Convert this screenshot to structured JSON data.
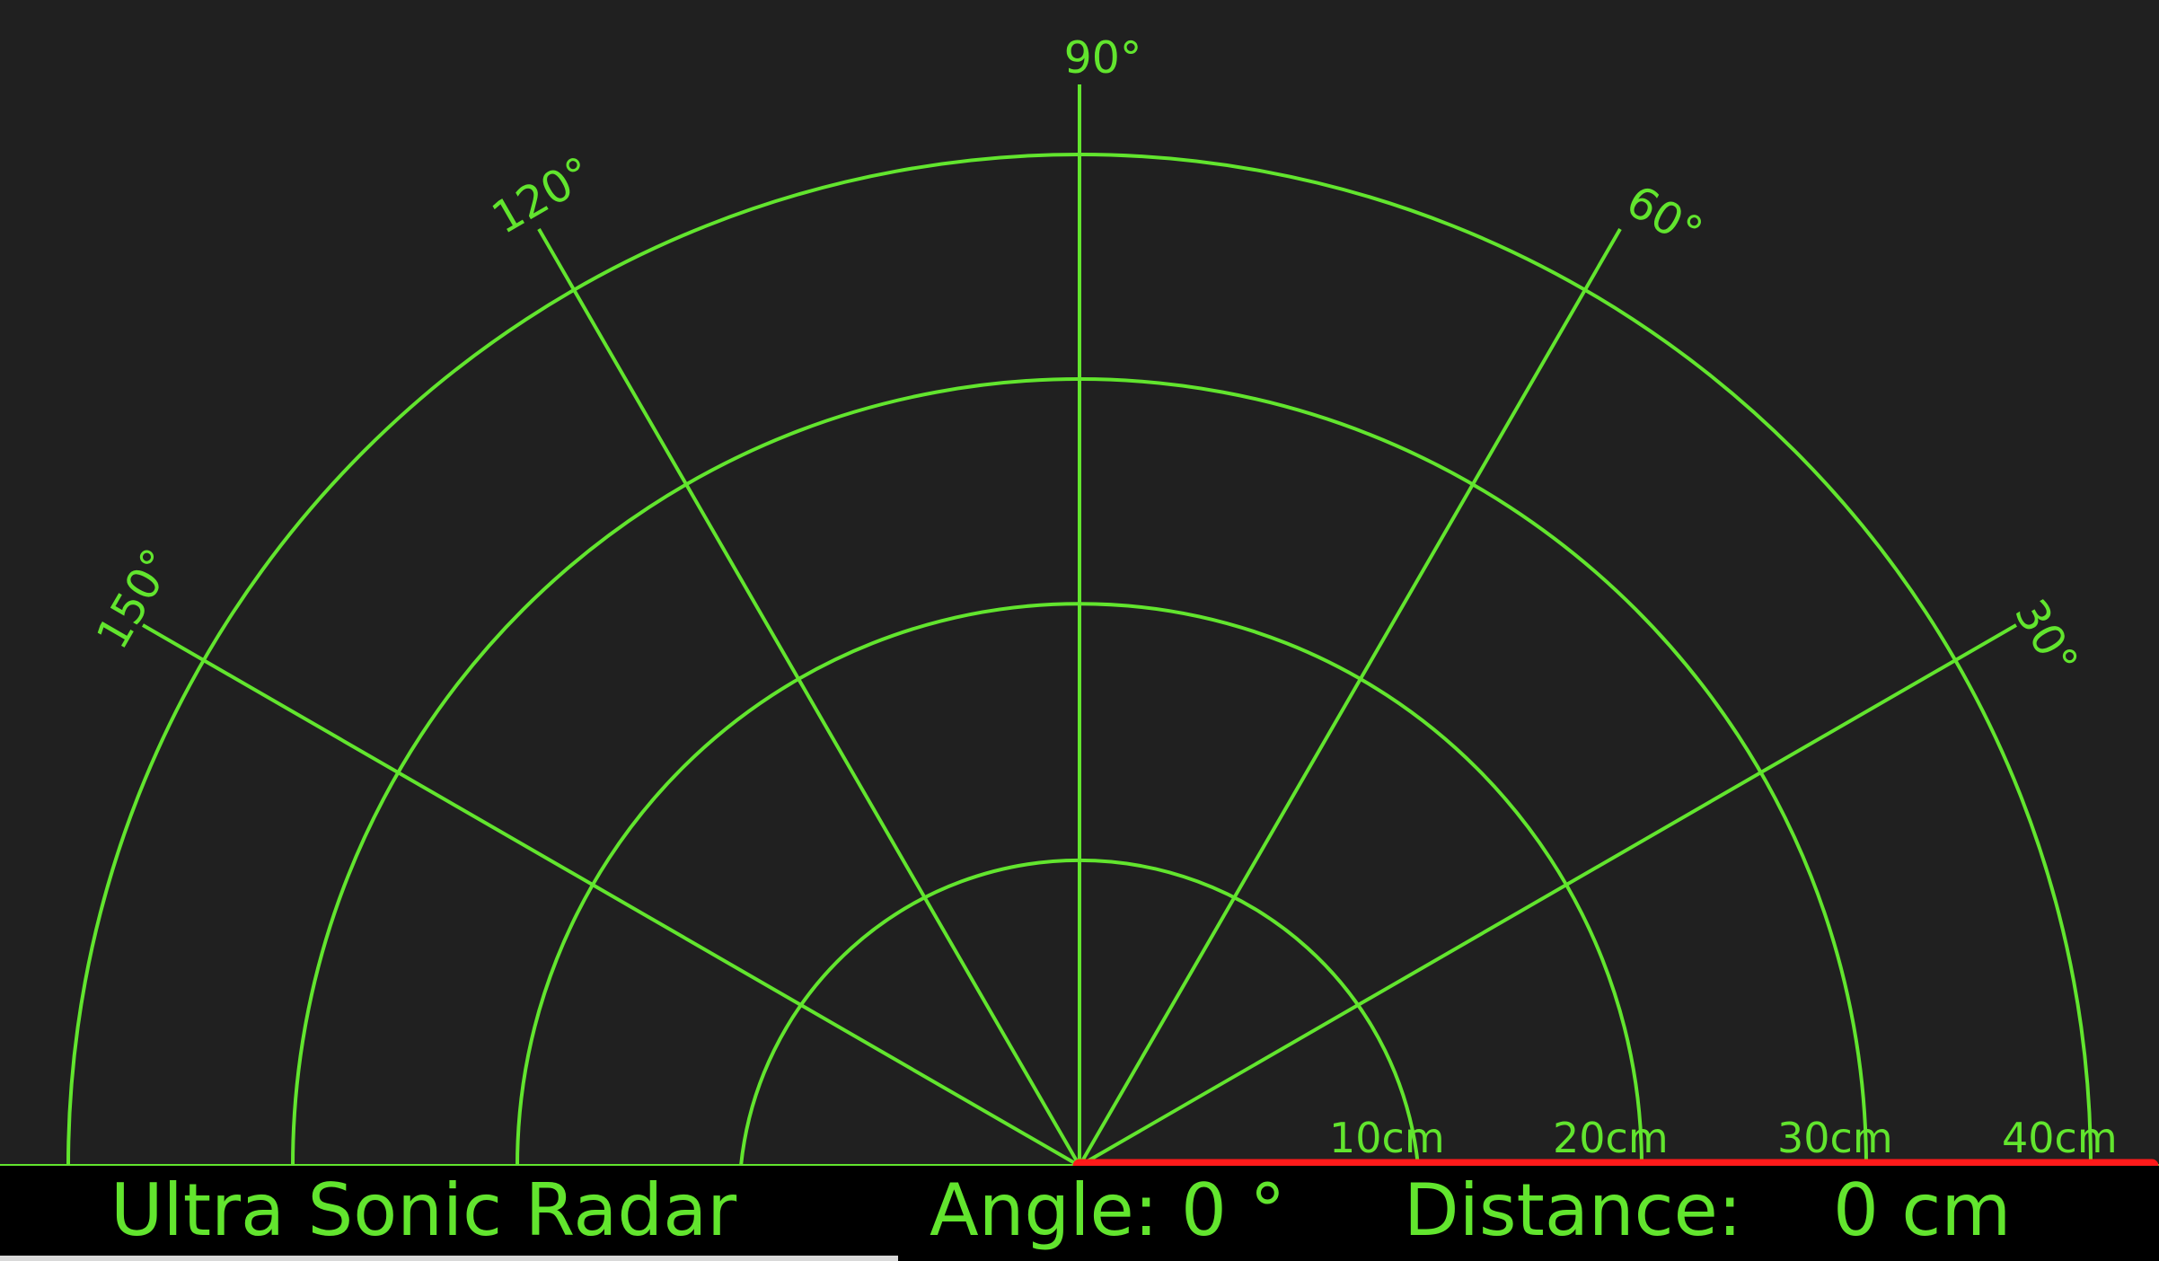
{
  "window": {
    "background_color": "#202020",
    "bar_color": "#000000"
  },
  "colors": {
    "grid": "#62e52e",
    "sweep": "#ff1a1a",
    "text": "#62e52e"
  },
  "radar": {
    "angle_labels": [
      "30°",
      "60°",
      "90°",
      "120°",
      "150°"
    ],
    "range_labels": [
      "10cm",
      "20cm",
      "30cm",
      "40cm"
    ],
    "max_range_cm": 40,
    "current_angle_deg": 0,
    "current_distance_cm": 0
  },
  "status_bar": {
    "title": "Ultra Sonic Radar",
    "angle_text": "Angle: 0 °",
    "distance_label": "Distance:",
    "distance_value": "0 cm"
  }
}
